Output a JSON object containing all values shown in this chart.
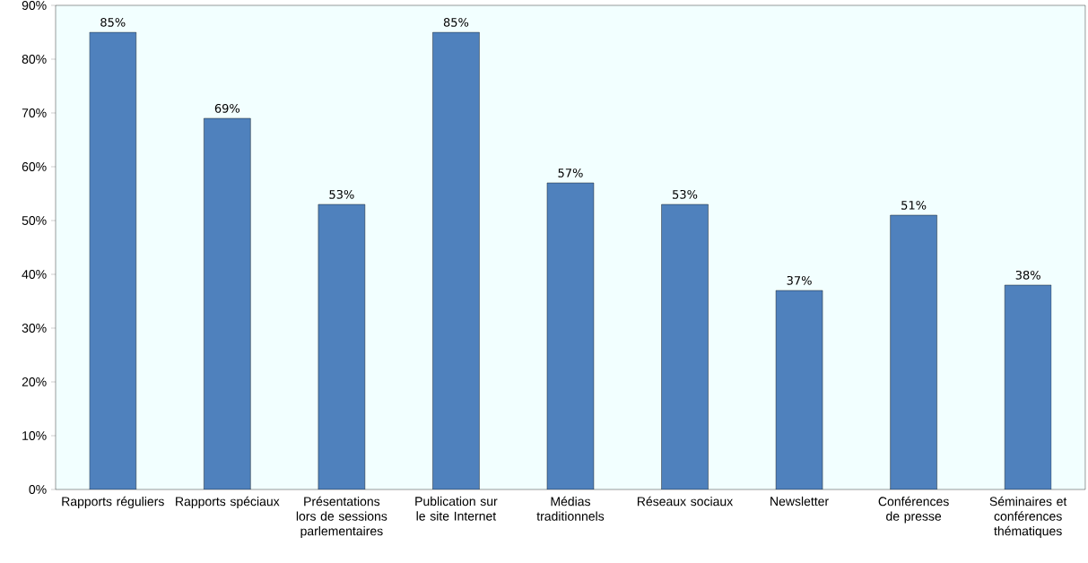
{
  "chart_data": {
    "type": "bar",
    "categories": [
      "Rapports réguliers",
      "Rapports spéciaux",
      "Présentations lors de sessions parlementaires",
      "Publication sur le site Internet",
      "Médias traditionnels",
      "Réseaux sociaux",
      "Newsletter",
      "Conférences de presse",
      "Séminaires et conférences thématiques"
    ],
    "values": [
      85,
      69,
      53,
      85,
      57,
      53,
      37,
      51,
      38
    ],
    "value_labels": [
      "85%",
      "69%",
      "53%",
      "85%",
      "57%",
      "53%",
      "37%",
      "51%",
      "38%"
    ],
    "color": "#4f81bd",
    "ylim": [
      0,
      90
    ],
    "yticks": [
      {
        "value": 0,
        "label": "0%"
      },
      {
        "value": 10,
        "label": "10%"
      },
      {
        "value": 20,
        "label": "20%"
      },
      {
        "value": 30,
        "label": "30%"
      },
      {
        "value": 40,
        "label": "40%"
      },
      {
        "value": 50,
        "label": "50%"
      },
      {
        "value": 60,
        "label": "60%"
      },
      {
        "value": 70,
        "label": "70%"
      },
      {
        "value": 80,
        "label": "80%"
      },
      {
        "value": 90,
        "label": "90%"
      }
    ],
    "grid": false
  }
}
